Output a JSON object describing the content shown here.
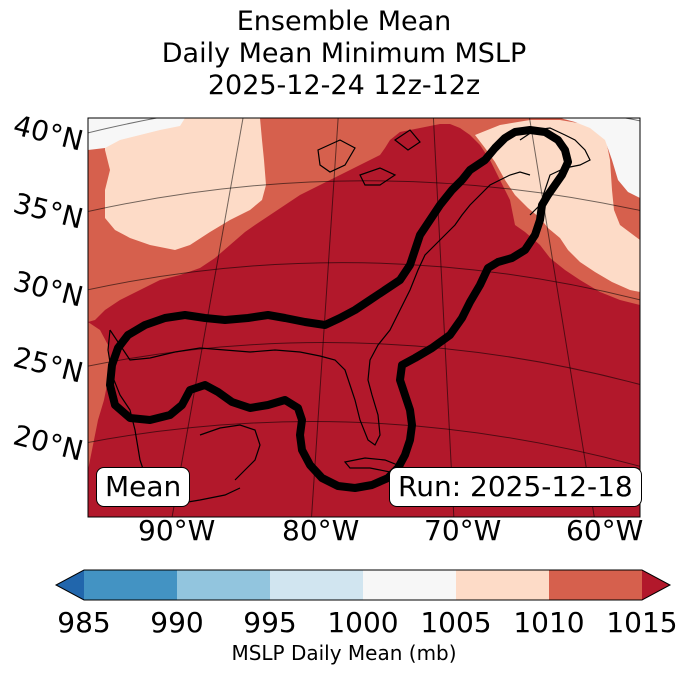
{
  "title": {
    "line1": "Ensemble Mean",
    "line2": "Daily Mean Minimum MSLP",
    "line3": "2025-12-24 12z-12z"
  },
  "map": {
    "lat_labels": [
      "40°N",
      "35°N",
      "30°N",
      "25°N",
      "20°N"
    ],
    "lon_labels": [
      "90°W",
      "80°W",
      "70°W",
      "60°W"
    ],
    "box_left": "Mean",
    "box_right": "Run: 2025-12-18",
    "fill_colors": {
      "c1000_1005": "#f7f7f7",
      "c1005_1010": "#fddbc7",
      "c1010_1015": "#d6604d",
      "c1015_plus": "#b2182b"
    },
    "contour_color": "#000000"
  },
  "colorbar": {
    "ticks": [
      "985",
      "990",
      "995",
      "1000",
      "1005",
      "1010",
      "1015"
    ],
    "colors": [
      "#2166ac",
      "#4393c3",
      "#92c5de",
      "#d1e5f0",
      "#f7f7f7",
      "#fddbc7",
      "#d6604d",
      "#b2182b"
    ],
    "label": "MSLP Daily Mean (mb)"
  }
}
